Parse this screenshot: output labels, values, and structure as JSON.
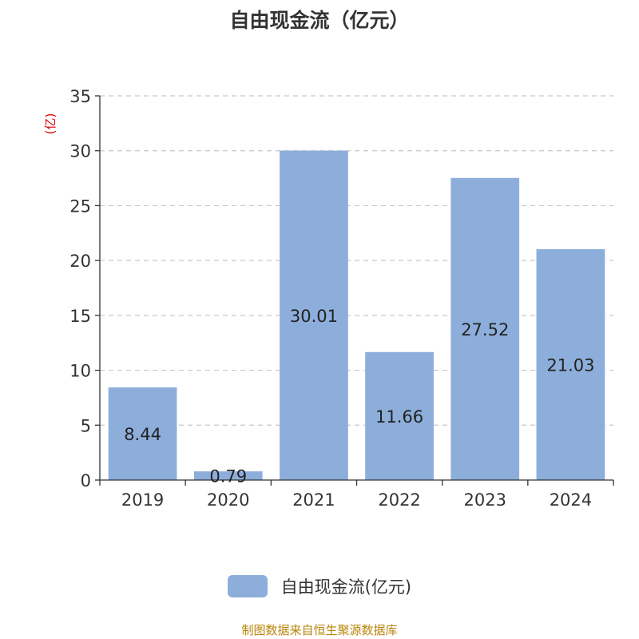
{
  "chart_data": {
    "type": "bar",
    "title": "自由现金流（亿元）",
    "ylabel": "(亿)",
    "categories": [
      "2019",
      "2020",
      "2021",
      "2022",
      "2023",
      "2024"
    ],
    "series": [
      {
        "name": "自由现金流(亿元)",
        "values": [
          8.44,
          0.79,
          30.01,
          11.66,
          27.52,
          21.03
        ]
      }
    ],
    "ylim": [
      0,
      35
    ],
    "yticks": [
      0,
      5,
      10,
      15,
      20,
      25,
      30,
      35
    ],
    "grid": true,
    "data_labels": [
      "8.44",
      "0.79",
      "30.01",
      "11.66",
      "27.52",
      "21.03"
    ],
    "legend_position": "bottom",
    "colors": {
      "bar": "#8daedb",
      "ylabel": "#e00000"
    }
  },
  "footer": {
    "source": "制图数据来自恒生聚源数据库"
  }
}
